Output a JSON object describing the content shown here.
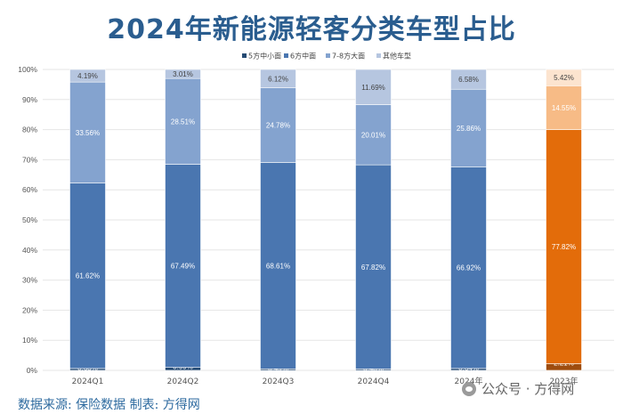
{
  "page": {
    "title": "2024年新能源轻客分类车型占比",
    "source": "数据来源: 保险数据  制表: 方得网",
    "watermark": "公众号 · 方得网",
    "watermark_icon": "wechat-icon"
  },
  "chart_data": {
    "type": "bar",
    "stacked": true,
    "title": "2024年新能源轻客分类车型占比",
    "xlabel": "",
    "ylabel": "",
    "ylim": [
      0,
      100
    ],
    "yticks": [
      "0%",
      "10%",
      "20%",
      "30%",
      "40%",
      "50%",
      "60%",
      "70%",
      "80%",
      "90%",
      "100%"
    ],
    "legend_position": "top-center",
    "categories": [
      "2024Q1",
      "2024Q2",
      "2024Q3",
      "2024Q4",
      "2024年",
      "2023年"
    ],
    "series": [
      {
        "name": "5方中小面",
        "values": [
          0.63,
          0.99,
          0.49,
          0.48,
          0.64,
          2.21
        ],
        "labels": [
          "0.63%",
          "0.99%",
          "0.49%",
          "0.48%",
          "0.64%",
          "2.21%"
        ]
      },
      {
        "name": "6方中面",
        "values": [
          61.62,
          67.49,
          68.61,
          67.82,
          66.92,
          77.82
        ],
        "labels": [
          "61.62%",
          "67.49%",
          "68.61%",
          "67.82%",
          "66.92%",
          "77.82%"
        ]
      },
      {
        "name": "7-8方大面",
        "values": [
          33.56,
          28.51,
          24.78,
          20.01,
          25.86,
          14.55
        ],
        "labels": [
          "33.56%",
          "28.51%",
          "24.78%",
          "20.01%",
          "25.86%",
          "14.55%"
        ]
      },
      {
        "name": "其他车型",
        "values": [
          4.19,
          3.01,
          6.12,
          11.69,
          6.58,
          5.42
        ],
        "labels": [
          "4.19%",
          "3.01%",
          "6.12%",
          "11.69%",
          "6.58%",
          "5.42%"
        ]
      }
    ],
    "colors": {
      "blue": [
        "#254a73",
        "#4a76b0",
        "#84a3cf",
        "#b6c6e0"
      ],
      "orange": [
        "#9e4c0e",
        "#e36c0a",
        "#f7bb86",
        "#fce4cf"
      ],
      "orange_categories": [
        "2023年"
      ],
      "grid": "#e6e6e6",
      "label_on_dark": "#ffffff",
      "label_on_light": "#444444"
    }
  }
}
